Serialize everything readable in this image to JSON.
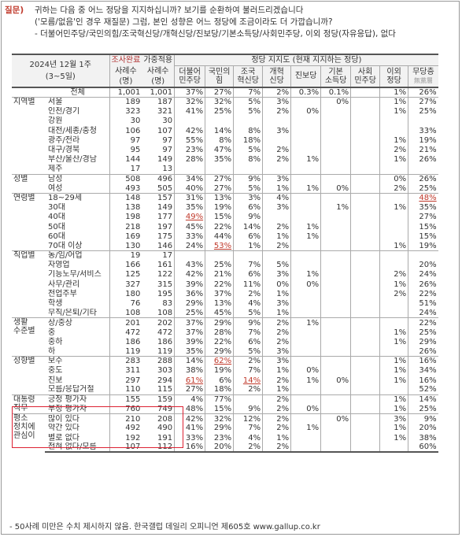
{
  "question": {
    "label": "질문)",
    "lines": [
      "귀하는 다음 중 어느 정당을 지지하십니까? 보기를 순환하여 불러드리겠습니다",
      "('모름/없음'인 경우 재질문) 그럼, 본인 성향은 어느 정당에 조금이라도 더 가깝습니까?",
      "- 더불어민주당/국민의힘/조국혁신당/개혁신당/진보당/기본소득당/사회민주당, 이외 정당(자유응답), 없다"
    ]
  },
  "header": {
    "period_line1": "2024년 12월 1주",
    "period_line2": "(3~5일)",
    "sample_done": "조사완료",
    "weighted": "가중적용",
    "cases": "사례수",
    "persons": "(명)",
    "support_title": "정당 지지도 (현재 지지하는 정당)",
    "parties": [
      [
        "더불어",
        "민주당"
      ],
      [
        "국민의",
        "힘"
      ],
      [
        "조국",
        "혁신당"
      ],
      [
        "개혁",
        "신당"
      ],
      [
        "진보당",
        ""
      ],
      [
        "기본",
        "소득당"
      ],
      [
        "사회",
        "민주당"
      ],
      [
        "이외",
        "정당"
      ],
      [
        "무당층",
        "無黨層"
      ]
    ]
  },
  "groups": [
    {
      "name": "",
      "rows": [
        {
          "label": "전체",
          "n1": "1,001",
          "n2": "1,001",
          "v": [
            "37%",
            "27%",
            "7%",
            "2%",
            "0.3%",
            "0.1%",
            "",
            "1%",
            "26%"
          ]
        }
      ]
    },
    {
      "name": "지역별",
      "rows": [
        {
          "label": "서울",
          "n1": "189",
          "n2": "187",
          "v": [
            "32%",
            "32%",
            "5%",
            "3%",
            "",
            "0%",
            "",
            "1%",
            "27%"
          ]
        },
        {
          "label": "인천/경기",
          "n1": "323",
          "n2": "321",
          "v": [
            "41%",
            "25%",
            "5%",
            "2%",
            "0%",
            "",
            "",
            "1%",
            "25%"
          ]
        },
        {
          "label": "강원",
          "n1": "30",
          "n2": "30",
          "v": [
            "",
            "",
            "",
            "",
            "",
            "",
            "",
            "",
            ""
          ]
        },
        {
          "label": "대전/세종/충청",
          "n1": "106",
          "n2": "107",
          "v": [
            "42%",
            "14%",
            "8%",
            "3%",
            "",
            "",
            "",
            "",
            "33%"
          ]
        },
        {
          "label": "광주/전라",
          "n1": "97",
          "n2": "97",
          "v": [
            "55%",
            "8%",
            "18%",
            "",
            "",
            "",
            "",
            "1%",
            "19%"
          ]
        },
        {
          "label": "대구/경북",
          "n1": "95",
          "n2": "97",
          "v": [
            "23%",
            "47%",
            "5%",
            "2%",
            "",
            "",
            "",
            "2%",
            "21%"
          ]
        },
        {
          "label": "부산/울산/경남",
          "n1": "144",
          "n2": "149",
          "v": [
            "28%",
            "35%",
            "8%",
            "2%",
            "1%",
            "",
            "",
            "1%",
            "26%"
          ]
        },
        {
          "label": "제주",
          "n1": "17",
          "n2": "13",
          "v": [
            "",
            "",
            "",
            "",
            "",
            "",
            "",
            "",
            ""
          ]
        }
      ]
    },
    {
      "name": "성별",
      "rows": [
        {
          "label": "남성",
          "n1": "508",
          "n2": "496",
          "v": [
            "34%",
            "27%",
            "9%",
            "3%",
            "",
            "",
            "",
            "0%",
            "26%"
          ]
        },
        {
          "label": "여성",
          "n1": "493",
          "n2": "505",
          "v": [
            "40%",
            "27%",
            "5%",
            "1%",
            "1%",
            "0%",
            "",
            "2%",
            "25%"
          ]
        }
      ]
    },
    {
      "name": "연령별",
      "rows": [
        {
          "label": "18~29세",
          "n1": "148",
          "n2": "157",
          "v": [
            "31%",
            "13%",
            "3%",
            "4%",
            "",
            "",
            "",
            "",
            "48%"
          ],
          "hl": [
            8
          ]
        },
        {
          "label": "30대",
          "n1": "138",
          "n2": "149",
          "v": [
            "35%",
            "19%",
            "6%",
            "3%",
            "",
            "1%",
            "",
            "1%",
            "35%"
          ]
        },
        {
          "label": "40대",
          "n1": "198",
          "n2": "177",
          "v": [
            "49%",
            "15%",
            "9%",
            "",
            "",
            "",
            "",
            "",
            "27%"
          ],
          "hl": [
            0
          ]
        },
        {
          "label": "50대",
          "n1": "218",
          "n2": "197",
          "v": [
            "45%",
            "22%",
            "14%",
            "2%",
            "1%",
            "",
            "",
            "",
            "15%"
          ]
        },
        {
          "label": "60대",
          "n1": "169",
          "n2": "175",
          "v": [
            "33%",
            "44%",
            "6%",
            "1%",
            "1%",
            "",
            "",
            "",
            "15%"
          ]
        },
        {
          "label": "70대 이상",
          "n1": "130",
          "n2": "146",
          "v": [
            "24%",
            "53%",
            "1%",
            "2%",
            "",
            "",
            "",
            "1%",
            "19%"
          ],
          "hl": [
            1
          ]
        }
      ]
    },
    {
      "name": "직업별",
      "rows": [
        {
          "label": "농/임/어업",
          "n1": "19",
          "n2": "17",
          "v": [
            "",
            "",
            "",
            "",
            "",
            "",
            "",
            "",
            ""
          ]
        },
        {
          "label": "자영업",
          "n1": "166",
          "n2": "161",
          "v": [
            "43%",
            "25%",
            "7%",
            "5%",
            "",
            "",
            "",
            "",
            "20%"
          ]
        },
        {
          "label": "기능노무/서비스",
          "n1": "125",
          "n2": "122",
          "v": [
            "42%",
            "21%",
            "6%",
            "3%",
            "1%",
            "",
            "",
            "2%",
            "24%"
          ]
        },
        {
          "label": "사무/관리",
          "n1": "327",
          "n2": "315",
          "v": [
            "39%",
            "22%",
            "11%",
            "0%",
            "0%",
            "",
            "",
            "1%",
            "26%"
          ]
        },
        {
          "label": "전업주부",
          "n1": "180",
          "n2": "195",
          "v": [
            "36%",
            "37%",
            "2%",
            "1%",
            "",
            "",
            "",
            "2%",
            "22%"
          ]
        },
        {
          "label": "학생",
          "n1": "76",
          "n2": "83",
          "v": [
            "29%",
            "13%",
            "4%",
            "3%",
            "",
            "",
            "",
            "",
            "51%"
          ]
        },
        {
          "label": "무직/은퇴/기타",
          "n1": "108",
          "n2": "108",
          "v": [
            "25%",
            "45%",
            "5%",
            "1%",
            "",
            "",
            "",
            "",
            "24%"
          ]
        }
      ]
    },
    {
      "name": "생활\n수준별",
      "rows": [
        {
          "label": "상/중상",
          "n1": "201",
          "n2": "202",
          "v": [
            "37%",
            "29%",
            "9%",
            "2%",
            "1%",
            "",
            "",
            "",
            "22%"
          ]
        },
        {
          "label": "중",
          "n1": "472",
          "n2": "472",
          "v": [
            "37%",
            "28%",
            "7%",
            "2%",
            "",
            "",
            "",
            "1%",
            "25%"
          ]
        },
        {
          "label": "중하",
          "n1": "186",
          "n2": "186",
          "v": [
            "39%",
            "22%",
            "6%",
            "2%",
            "",
            "",
            "",
            "1%",
            "29%"
          ]
        },
        {
          "label": "하",
          "n1": "119",
          "n2": "119",
          "v": [
            "35%",
            "29%",
            "5%",
            "3%",
            "",
            "",
            "",
            "",
            "26%"
          ]
        }
      ]
    },
    {
      "name": "성향별",
      "rows": [
        {
          "label": "보수",
          "n1": "283",
          "n2": "288",
          "v": [
            "14%",
            "62%",
            "2%",
            "3%",
            "",
            "",
            "",
            "1%",
            "16%"
          ],
          "hl": [
            1
          ]
        },
        {
          "label": "중도",
          "n1": "311",
          "n2": "303",
          "v": [
            "38%",
            "19%",
            "7%",
            "1%",
            "0%",
            "",
            "",
            "1%",
            "34%"
          ]
        },
        {
          "label": "진보",
          "n1": "297",
          "n2": "294",
          "v": [
            "61%",
            "6%",
            "14%",
            "2%",
            "1%",
            "0%",
            "",
            "1%",
            "16%"
          ],
          "hl": [
            0,
            2
          ]
        },
        {
          "label": "모름/응답거절",
          "n1": "110",
          "n2": "115",
          "v": [
            "27%",
            "18%",
            "2%",
            "1%",
            "",
            "",
            "",
            "",
            "52%"
          ]
        }
      ]
    },
    {
      "name": "대통령\n직무",
      "rows": [
        {
          "label": "긍정 평가자",
          "n1": "155",
          "n2": "159",
          "v": [
            "4%",
            "77%",
            "",
            "2%",
            "",
            "",
            "",
            "1%",
            "14%"
          ]
        },
        {
          "label": "부정 평가자",
          "n1": "760",
          "n2": "749",
          "v": [
            "48%",
            "15%",
            "9%",
            "2%",
            "0%",
            "",
            "",
            "1%",
            "25%"
          ]
        }
      ]
    },
    {
      "name": "평소\n정치에\n관심이",
      "rows": [
        {
          "label": "많이 있다",
          "n1": "210",
          "n2": "208",
          "v": [
            "42%",
            "32%",
            "12%",
            "2%",
            "",
            "0%",
            "",
            "3%",
            "9%"
          ]
        },
        {
          "label": "약간 있다",
          "n1": "492",
          "n2": "490",
          "v": [
            "41%",
            "29%",
            "7%",
            "2%",
            "1%",
            "",
            "",
            "1%",
            "20%"
          ]
        },
        {
          "label": "별로 없다",
          "n1": "192",
          "n2": "191",
          "v": [
            "33%",
            "23%",
            "4%",
            "1%",
            "",
            "",
            "",
            "1%",
            "38%"
          ]
        },
        {
          "label": "전혀 없다/모름",
          "n1": "107",
          "n2": "112",
          "v": [
            "16%",
            "20%",
            "2%",
            "2%",
            "",
            "",
            "",
            "",
            "60%"
          ]
        }
      ]
    }
  ],
  "footnote": "- 50사례 미만은 수치 제시하지 않음. 한국갤럽 데일리 오피니언 제605호 www.gallup.co.kr"
}
